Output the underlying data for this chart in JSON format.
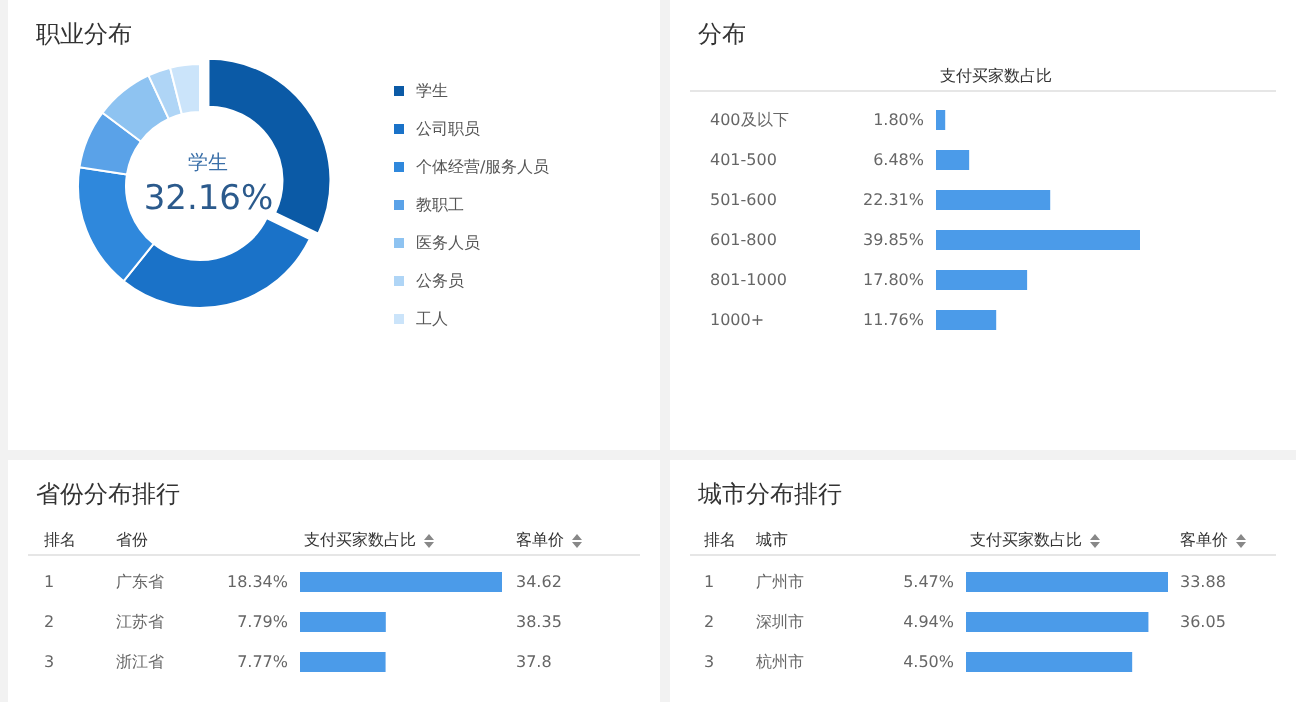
{
  "chart_data": [
    {
      "type": "donut",
      "title": "职业分布",
      "legend": "right",
      "categories": [
        "学生",
        "公司职员",
        "个体经营/服务人员",
        "教职工",
        "医务人员",
        "公务员",
        "工人"
      ],
      "values": [
        32.16,
        28.6,
        16.7,
        7.8,
        7.8,
        3.0,
        3.94
      ],
      "value_labels": [
        "32.16%",
        null,
        null,
        null,
        null,
        null,
        null
      ],
      "colors": [
        "#0b5aa6",
        "#1a72c8",
        "#2f88dc",
        "#5aa2e8",
        "#8ec3f1",
        "#afd5f6",
        "#cbe4fa"
      ]
    },
    {
      "type": "bar",
      "orientation": "horizontal",
      "title": "分布",
      "categories": [
        "400及以下",
        "401-500",
        "501-600",
        "601-800",
        "801-1000",
        "1000+"
      ],
      "series": [
        {
          "name": "支付买家数占比",
          "color": "#4b9be9",
          "values": [
            1.8,
            6.48,
            22.31,
            39.85,
            17.8,
            11.76
          ],
          "value_labels": [
            "1.80%",
            "6.48%",
            "22.31%",
            "39.85%",
            "17.80%",
            "11.76%"
          ]
        }
      ]
    },
    {
      "type": "bar",
      "orientation": "horizontal",
      "title": "省份分布排行",
      "ylabel": "省份",
      "categories": [
        "广东省",
        "江苏省",
        "浙江省"
      ],
      "series": [
        {
          "name": "支付买家数占比",
          "color": "#4b9be9",
          "values": [
            18.34,
            7.79,
            7.77
          ],
          "value_labels": [
            "18.34%",
            "7.79%",
            "7.77%"
          ]
        }
      ],
      "annotations": [
        "排名",
        "1",
        "2",
        "3",
        "客单价",
        "34.62",
        "38.35",
        "37.8"
      ]
    },
    {
      "type": "bar",
      "orientation": "horizontal",
      "title": "城市分布排行",
      "ylabel": "城市",
      "categories": [
        "广州市",
        "深圳市",
        "杭州市"
      ],
      "series": [
        {
          "name": "支付买家数占比",
          "color": "#4b9be9",
          "values": [
            5.47,
            4.94,
            4.5
          ],
          "value_labels": [
            "5.47%",
            "4.94%",
            "4.50%"
          ]
        }
      ],
      "annotations": [
        "排名",
        "1",
        "2",
        "3",
        "客单价",
        "33.88",
        "36.05"
      ]
    }
  ]
}
